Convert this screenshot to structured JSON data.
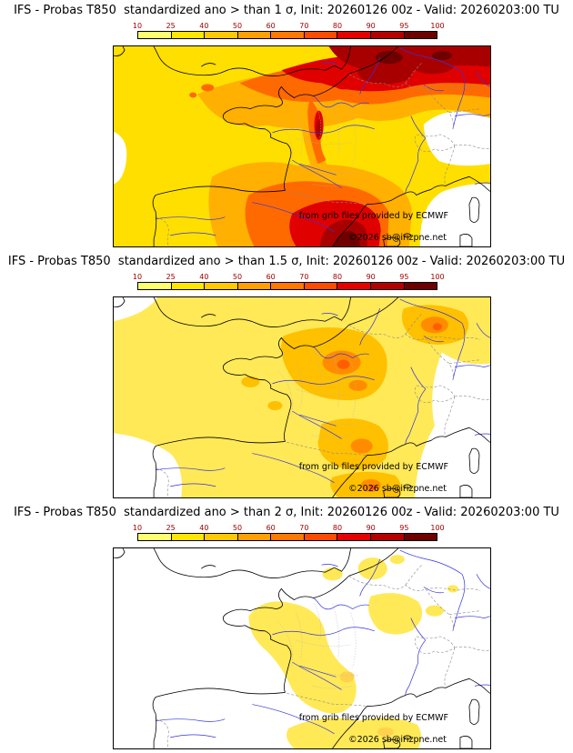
{
  "page": {
    "background": "#ffffff"
  },
  "colorbar": {
    "ticks": [
      "10",
      "25",
      "40",
      "50",
      "60",
      "70",
      "80",
      "90",
      "95",
      "100"
    ],
    "colors": [
      "#ffff6e",
      "#ffe600",
      "#ffc800",
      "#ffa000",
      "#ff7800",
      "#ff4b00",
      "#e60000",
      "#b40000",
      "#6e0000"
    ],
    "tick_color": "#a00000"
  },
  "panels": [
    {
      "id": "gt-1-sigma",
      "title": "IFS - Probas T850  standardized ano > than 1 σ, Init: 20260126 00z - Valid: 20260203:00 TU",
      "credit": "from grib files provided by ECMWF",
      "copyright": "©2026 sb@irizpne.net"
    },
    {
      "id": "gt-1.5-sigma",
      "title": "IFS - Probas T850  standardized ano > than 1.5 σ, Init: 20260126 00z - Valid: 20260203:00 TU",
      "credit": "from grib files provided by ECMWF",
      "copyright": "©2026 sb@irizpne.net"
    },
    {
      "id": "gt-2-sigma",
      "title": "IFS - Probas T850  standardized ano > than 2 σ, Init: 20260126 00z - Valid: 20260203:00 TU",
      "credit": "from grib files provided by ECMWF",
      "copyright": "©2026 sb@irizpne.net"
    }
  ],
  "chart_data": [
    {
      "type": "heatmap",
      "title": "IFS - Probas T850 standardized ano > than 1 σ",
      "threshold_sigma": 1,
      "init": "20260126 00z",
      "valid": "20260203:00 TU",
      "units": "%",
      "region": "Western Europe / France",
      "levels": [
        10,
        25,
        40,
        50,
        60,
        70,
        80,
        90,
        95,
        100
      ],
      "palette": [
        "#ffff6e",
        "#ffe600",
        "#ffc800",
        "#ffa000",
        "#ff7800",
        "#ff4b00",
        "#e60000",
        "#b40000",
        "#6e0000"
      ],
      "legend_position": "top",
      "summary": "Probabilities above 40-70% cover nearly the whole domain; maxima 90-100% stretch over northeastern France, Benelux and Germany and a second 90-100% core lies over the far south near the western Mediterranean; probabilities fall below 10% over a pocket east of the Alps / northern Italy and the southeastern corner of the map."
    },
    {
      "type": "heatmap",
      "title": "IFS - Probas T850 standardized ano > than 1.5 σ",
      "threshold_sigma": 1.5,
      "init": "20260126 00z",
      "valid": "20260203:00 TU",
      "units": "%",
      "region": "Western Europe / France",
      "levels": [
        10,
        25,
        40,
        50,
        60,
        70,
        80,
        90,
        95,
        100
      ],
      "palette": [
        "#ffff6e",
        "#ffe600",
        "#ffc800",
        "#ffa000",
        "#ff7800",
        "#ff4b00",
        "#e60000",
        "#b40000",
        "#6e0000"
      ],
      "legend_position": "top",
      "summary": "Widespread 10-40% probabilities over most of the domain; 40-70% cores over northeastern France, a patch over Germany to the northeast, south-central France and the western Mediterranean; below 10% over the southeastern quadrant and the far southwest."
    },
    {
      "type": "heatmap",
      "title": "IFS - Probas T850 standardized ano > than 2 σ",
      "threshold_sigma": 2,
      "init": "20260126 00z",
      "valid": "20260203:00 TU",
      "units": "%",
      "region": "Western Europe / France",
      "levels": [
        10,
        25,
        40,
        50,
        60,
        70,
        80,
        90,
        95,
        100
      ],
      "palette": [
        "#ffff6e",
        "#ffe600",
        "#ffc800",
        "#ffa000",
        "#ff7800",
        "#ff4b00",
        "#e60000",
        "#b40000",
        "#6e0000"
      ],
      "legend_position": "top",
      "summary": "Mostly below 10%; isolated 10-25% patches over central and eastern France, a few spots over Belgium/Germany, and a band along the Mediterranean near the Balearic Islands."
    }
  ]
}
